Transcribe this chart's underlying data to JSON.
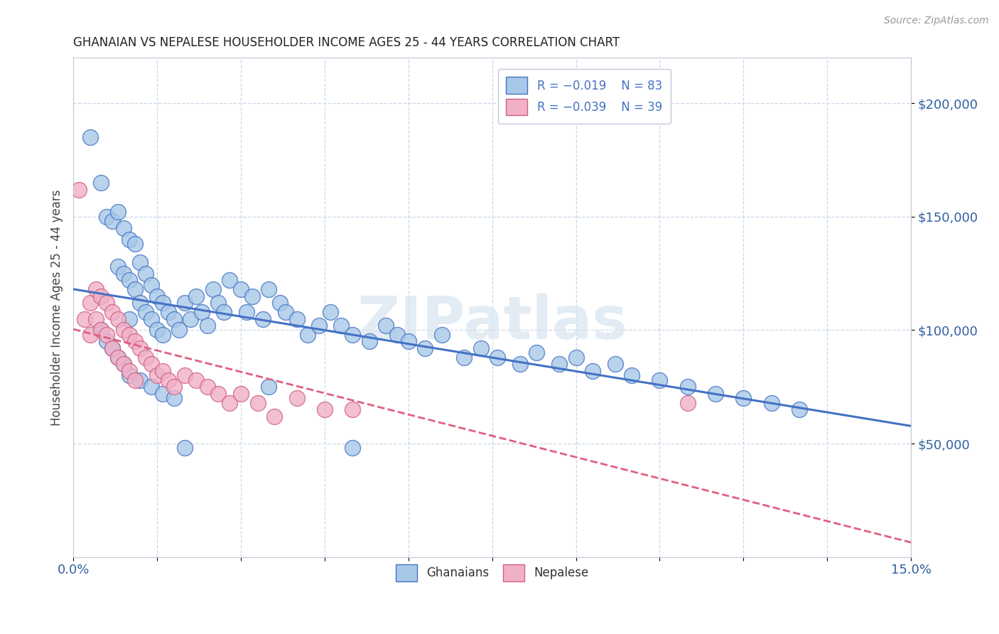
{
  "title": "GHANAIAN VS NEPALESE HOUSEHOLDER INCOME AGES 25 - 44 YEARS CORRELATION CHART",
  "source_text": "Source: ZipAtlas.com",
  "ylabel": "Householder Income Ages 25 - 44 years",
  "xlim": [
    0.0,
    0.15
  ],
  "ylim": [
    0,
    220000
  ],
  "xticks": [
    0.0,
    0.015,
    0.03,
    0.045,
    0.06,
    0.075,
    0.09,
    0.105,
    0.12,
    0.135,
    0.15
  ],
  "xticklabels": [
    "0.0%",
    "",
    "",
    "",
    "",
    "",
    "",
    "",
    "",
    "",
    "15.0%"
  ],
  "ytick_positions": [
    50000,
    100000,
    150000,
    200000
  ],
  "ytick_labels": [
    "$50,000",
    "$100,000",
    "$150,000",
    "$200,000"
  ],
  "color_ghanaian": "#a8c8e8",
  "color_nepalese": "#f0b0c8",
  "line_color_ghanaian": "#4472c4",
  "line_color_nepalese": "#e06080",
  "watermark": "ZIPatlas",
  "background_color": "#ffffff",
  "grid_color": "#c8d8e8",
  "ghanaian_x": [
    0.003,
    0.005,
    0.006,
    0.007,
    0.008,
    0.008,
    0.009,
    0.009,
    0.01,
    0.01,
    0.01,
    0.011,
    0.011,
    0.012,
    0.012,
    0.013,
    0.013,
    0.014,
    0.014,
    0.015,
    0.015,
    0.016,
    0.016,
    0.017,
    0.018,
    0.019,
    0.02,
    0.021,
    0.022,
    0.023,
    0.024,
    0.025,
    0.026,
    0.027,
    0.028,
    0.03,
    0.031,
    0.032,
    0.034,
    0.035,
    0.037,
    0.038,
    0.04,
    0.042,
    0.044,
    0.046,
    0.048,
    0.05,
    0.053,
    0.056,
    0.058,
    0.06,
    0.063,
    0.066,
    0.07,
    0.073,
    0.076,
    0.08,
    0.083,
    0.087,
    0.09,
    0.093,
    0.097,
    0.1,
    0.105,
    0.11,
    0.115,
    0.12,
    0.125,
    0.13,
    0.005,
    0.006,
    0.007,
    0.008,
    0.009,
    0.01,
    0.012,
    0.014,
    0.016,
    0.018,
    0.02,
    0.035,
    0.05
  ],
  "ghanaian_y": [
    185000,
    165000,
    150000,
    148000,
    152000,
    128000,
    145000,
    125000,
    140000,
    122000,
    105000,
    138000,
    118000,
    130000,
    112000,
    125000,
    108000,
    120000,
    105000,
    115000,
    100000,
    112000,
    98000,
    108000,
    105000,
    100000,
    112000,
    105000,
    115000,
    108000,
    102000,
    118000,
    112000,
    108000,
    122000,
    118000,
    108000,
    115000,
    105000,
    118000,
    112000,
    108000,
    105000,
    98000,
    102000,
    108000,
    102000,
    98000,
    95000,
    102000,
    98000,
    95000,
    92000,
    98000,
    88000,
    92000,
    88000,
    85000,
    90000,
    85000,
    88000,
    82000,
    85000,
    80000,
    78000,
    75000,
    72000,
    70000,
    68000,
    65000,
    100000,
    95000,
    92000,
    88000,
    85000,
    80000,
    78000,
    75000,
    72000,
    70000,
    48000,
    75000,
    48000
  ],
  "nepalese_x": [
    0.001,
    0.002,
    0.003,
    0.003,
    0.004,
    0.004,
    0.005,
    0.005,
    0.006,
    0.006,
    0.007,
    0.007,
    0.008,
    0.008,
    0.009,
    0.009,
    0.01,
    0.01,
    0.011,
    0.011,
    0.012,
    0.013,
    0.014,
    0.015,
    0.016,
    0.017,
    0.018,
    0.02,
    0.022,
    0.024,
    0.026,
    0.028,
    0.03,
    0.033,
    0.036,
    0.04,
    0.045,
    0.05,
    0.11
  ],
  "nepalese_y": [
    162000,
    105000,
    112000,
    98000,
    118000,
    105000,
    115000,
    100000,
    112000,
    98000,
    108000,
    92000,
    105000,
    88000,
    100000,
    85000,
    98000,
    82000,
    95000,
    78000,
    92000,
    88000,
    85000,
    80000,
    82000,
    78000,
    75000,
    80000,
    78000,
    75000,
    72000,
    68000,
    72000,
    68000,
    62000,
    70000,
    65000,
    65000,
    68000
  ]
}
